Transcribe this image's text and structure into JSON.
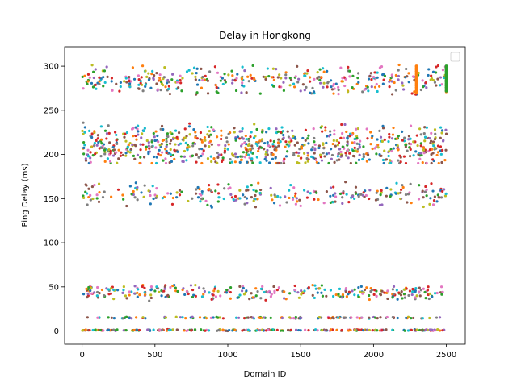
{
  "chart_data": {
    "type": "scatter",
    "title": "Delay in Hongkong",
    "xlabel": "Domain ID",
    "ylabel": "Ping Delay (ms)",
    "xlim": [
      -120,
      2630
    ],
    "ylim": [
      -15,
      322
    ],
    "x_ticks": [
      0,
      500,
      1000,
      1500,
      2000,
      2500
    ],
    "y_ticks": [
      0,
      50,
      100,
      150,
      200,
      250,
      300
    ],
    "grid": false,
    "legend": {
      "placement": "top-right",
      "entries": []
    },
    "palette": [
      "#1f77b4",
      "#ff7f0e",
      "#2ca02c",
      "#d62728",
      "#9467bd",
      "#8c564b",
      "#e377c2",
      "#7f7f7f",
      "#bcbd22",
      "#17becf"
    ],
    "x_range": [
      0,
      2500
    ],
    "bands": [
      {
        "center": 284,
        "min": 268,
        "max": 306,
        "count": 380,
        "color_group": "all"
      },
      {
        "center": 210,
        "min": 190,
        "max": 246,
        "count": 780,
        "color_group": "all"
      },
      {
        "center": 154,
        "min": 140,
        "max": 171,
        "count": 260,
        "color_group": "all"
      },
      {
        "center": 44,
        "min": 32,
        "max": 52,
        "count": 300,
        "color_group": "all"
      },
      {
        "center": 15,
        "min": 14,
        "max": 16,
        "count": 120,
        "color_group": "all"
      },
      {
        "center": 1,
        "min": 0,
        "max": 2,
        "count": 220,
        "color_group": "all"
      }
    ],
    "vertical_segments": [
      {
        "x": 2295,
        "y_min": 270,
        "y_max": 300,
        "color": "#ff7f0e"
      },
      {
        "x": 2500,
        "y_min": 272,
        "y_max": 300,
        "color": "#2ca02c"
      }
    ]
  }
}
